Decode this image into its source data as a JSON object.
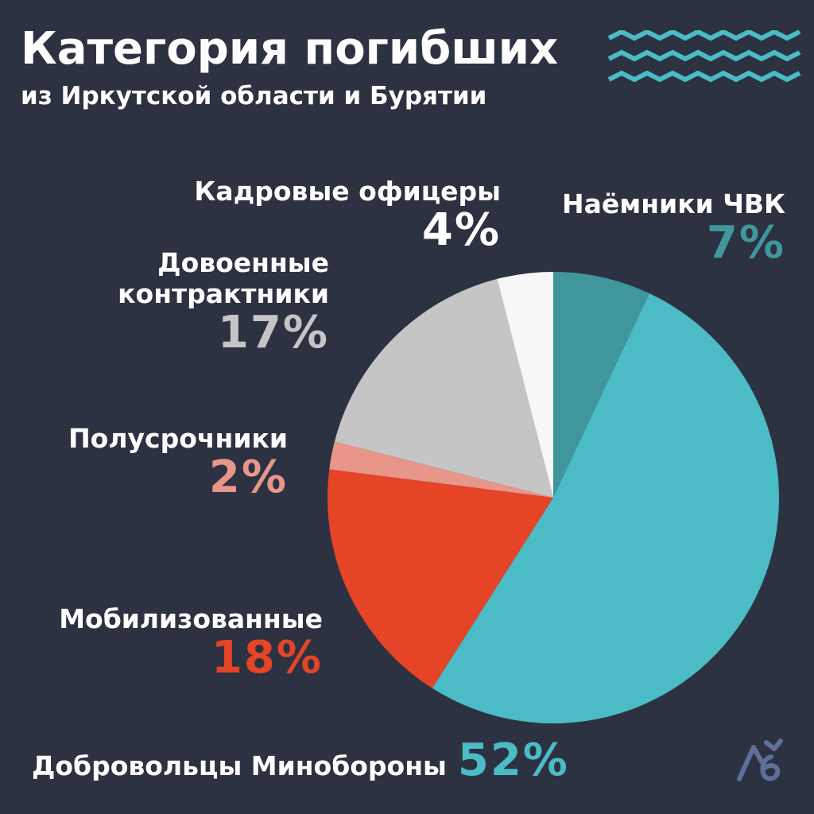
{
  "header": {
    "title": "Категория погибших",
    "subtitle": "из Иркутской области и Бурятии"
  },
  "icons": {
    "decor": "wave-lines-icon",
    "logo": "publisher-logo-icon"
  },
  "chart_data": {
    "type": "pie",
    "title": "Категория погибших",
    "subtitle": "из Иркутской области и Бурятии",
    "start_angle_deg": 0,
    "direction": "clockwise",
    "slices": [
      {
        "label": "Наёмники ЧВК",
        "value": 7,
        "value_label": "7%",
        "color": "#3f979c",
        "label_color": "#3f979c"
      },
      {
        "label": "Добровольцы Минобороны",
        "value": 52,
        "value_label": "52%",
        "color": "#4bbcc5",
        "label_color": "#4bbcc5"
      },
      {
        "label": "Мобилизованные",
        "value": 18,
        "value_label": "18%",
        "color": "#e54427",
        "label_color": "#e54427"
      },
      {
        "label": "Полусрочники",
        "value": 2,
        "value_label": "2%",
        "color": "#e8968a",
        "label_color": "#e8968a"
      },
      {
        "label": "Довоенные контрактники",
        "label_lines": [
          "Довоенные",
          "контрактники"
        ],
        "value": 17,
        "value_label": "17%",
        "color": "#c5c5c5",
        "label_color": "#c5c5c5"
      },
      {
        "label": "Кадровые офицеры",
        "value": 4,
        "value_label": "4%",
        "color": "#f7f7f7",
        "label_color": "#ffffff"
      }
    ]
  }
}
